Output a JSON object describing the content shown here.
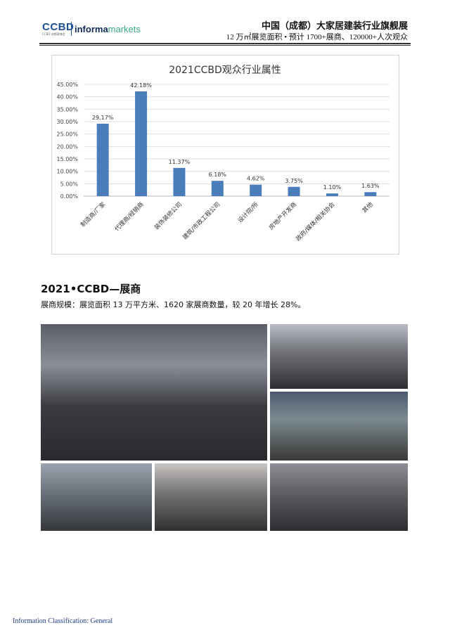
{
  "header": {
    "logo_ccbd": "CCBD",
    "logo_sub": "CCBD 成都建博会",
    "logo_informa": "informa",
    "logo_markets": "markets",
    "title": "中国（成都）大家居建装行业旗舰展",
    "subtitle": "12 万㎡展览面积 • 预计 1700+展商、120000+人次观众"
  },
  "chart_data": {
    "type": "bar",
    "title": "2021CCBD观众行业属性",
    "categories": [
      "制造商/厂家",
      "代理商/经销商",
      "装饰装修公司",
      "建筑/市政工程公司",
      "设计院/所",
      "房地产开发商",
      "政府/媒体/相关协会",
      "其他"
    ],
    "values": [
      29.17,
      42.18,
      11.37,
      6.18,
      4.62,
      3.75,
      1.1,
      1.63
    ],
    "data_labels": [
      "29.17%",
      "42.18%",
      "11.37%",
      "6.18%",
      "4.62%",
      "3.75%",
      "1.10%",
      "1.63%"
    ],
    "yticks": [
      "0.00%",
      "5.00%",
      "10.00%",
      "15.00%",
      "20.00%",
      "25.00%",
      "30.00%",
      "35.00%",
      "40.00%",
      "45.00%"
    ],
    "ylim": [
      0,
      45
    ],
    "grid": true,
    "bar_color": "#4a7ebb"
  },
  "section": {
    "title": "2021•CCBD—展商",
    "body": "展商规模：展览面积 13 万平方米、1620 家展商数量，较 20 年增长 28%。"
  },
  "photos": [
    "exhibition-hall-crowd",
    "exhibition-entrance-crowd",
    "exhibition-booth-aisle",
    "exhibition-aisle-left",
    "exhibition-aisle-center",
    "exhibition-aisle-right"
  ],
  "footer": "Information Classification: General"
}
